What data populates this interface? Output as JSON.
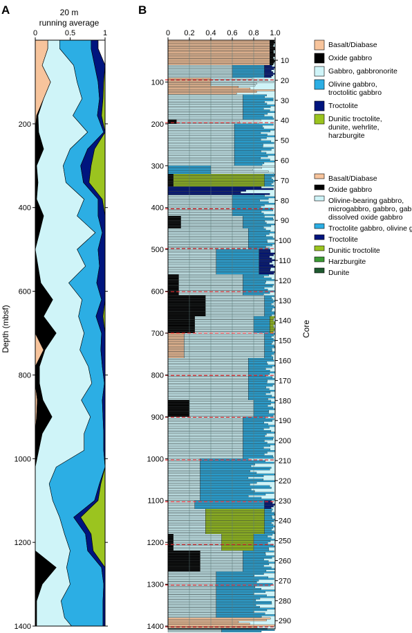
{
  "colors": {
    "basalt": "#f7c49c",
    "oxide": "#000000",
    "gabbro": "#cff4f8",
    "olivine_gabbro": "#2caee4",
    "troctolite": "#00157e",
    "dunitic_troctolite": "#9bc41f",
    "harzburgite": "#3d9c35",
    "dunite": "#1f5a30",
    "core_line": "#e2262a"
  },
  "chart_data": [
    {
      "type": "area",
      "panel_label": "A",
      "title": "20 m",
      "subtitle": "running average",
      "ylabel": "Depth (mbsf)",
      "xlim": [
        0,
        1
      ],
      "ylim": [
        0,
        1400
      ],
      "x_ticks": [
        "0",
        "0.5",
        "1"
      ],
      "y_ticks": [
        "200",
        "400",
        "600",
        "800",
        "1000",
        "1200",
        "1400"
      ],
      "series_order": [
        "Basalt/Diabase",
        "Oxide gabbro",
        "Gabbro, gabbronorite",
        "Olivine gabbro, troctolitic gabbro",
        "Troctolite",
        "Dunitic troctolite, dunite, wehrlite, harzburgite"
      ],
      "depth": [
        20,
        60,
        100,
        140,
        180,
        220,
        260,
        300,
        340,
        380,
        420,
        460,
        500,
        540,
        580,
        620,
        660,
        700,
        740,
        780,
        820,
        860,
        900,
        940,
        980,
        1020,
        1060,
        1100,
        1140,
        1180,
        1220,
        1260,
        1300,
        1340,
        1380,
        1400
      ],
      "series": [
        {
          "name": "Basalt/Diabase",
          "values": [
            0.18,
            0.1,
            0.22,
            0.12,
            0.02,
            0.0,
            0.0,
            0.0,
            0.0,
            0.0,
            0.0,
            0.0,
            0.0,
            0.0,
            0.0,
            0.0,
            0.0,
            0.0,
            0.12,
            0.0,
            0.0,
            0.03,
            0.02,
            0.0,
            0.0,
            0.0,
            0.0,
            0.0,
            0.0,
            0.0,
            0.0,
            0.0,
            0.0,
            0.0,
            0.0,
            0.0
          ]
        },
        {
          "name": "Oxide gabbro",
          "values": [
            0.0,
            0.0,
            0.0,
            0.0,
            0.02,
            0.05,
            0.12,
            0.02,
            0.04,
            0.02,
            0.12,
            0.06,
            0.0,
            0.04,
            0.08,
            0.25,
            0.12,
            0.3,
            0.02,
            0.06,
            0.06,
            0.08,
            0.22,
            0.1,
            0.05,
            0.0,
            0.0,
            0.0,
            0.0,
            0.0,
            0.0,
            0.3,
            0.1,
            0.02,
            0.02,
            0.02
          ]
        },
        {
          "name": "Gabbro, gabbronorite",
          "values": [
            0.17,
            0.45,
            0.38,
            0.55,
            0.5,
            0.7,
            0.38,
            0.38,
            0.4,
            0.68,
            0.48,
            0.8,
            0.6,
            0.68,
            0.4,
            0.42,
            0.5,
            0.4,
            0.5,
            0.7,
            0.75,
            0.55,
            0.55,
            0.6,
            0.65,
            0.3,
            0.2,
            0.25,
            0.35,
            0.42,
            0.5,
            0.15,
            0.4,
            0.35,
            0.4,
            0.5
          ]
        },
        {
          "name": "Olivine gabbro, troctolitic gabbro",
          "values": [
            0.45,
            0.3,
            0.3,
            0.25,
            0.35,
            0.23,
            0.25,
            0.25,
            0.25,
            0.2,
            0.3,
            0.1,
            0.3,
            0.2,
            0.4,
            0.28,
            0.25,
            0.25,
            0.3,
            0.2,
            0.18,
            0.3,
            0.18,
            0.28,
            0.28,
            0.7,
            0.72,
            0.6,
            0.2,
            0.3,
            0.25,
            0.5,
            0.48,
            0.6,
            0.55,
            0.45
          ]
        },
        {
          "name": "Troctolite",
          "values": [
            0.1,
            0.15,
            0.08,
            0.05,
            0.06,
            0.02,
            0.1,
            0.15,
            0.08,
            0.06,
            0.1,
            0.04,
            0.1,
            0.08,
            0.12,
            0.05,
            0.1,
            0.05,
            0.06,
            0.04,
            0.01,
            0.04,
            0.03,
            0.02,
            0.02,
            0.0,
            0.02,
            0.05,
            0.1,
            0.08,
            0.08,
            0.05,
            0.02,
            0.03,
            0.03,
            0.03
          ]
        },
        {
          "name": "Dunitic troctolite, dunite, wehrlite, harzburgite",
          "values": [
            0.0,
            0.0,
            0.02,
            0.03,
            0.05,
            0.0,
            0.15,
            0.2,
            0.23,
            0.04,
            0.0,
            0.0,
            0.0,
            0.0,
            0.0,
            0.0,
            0.03,
            0.0,
            0.0,
            0.0,
            0.0,
            0.0,
            0.0,
            0.0,
            0.0,
            0.0,
            0.06,
            0.1,
            0.35,
            0.2,
            0.17,
            0.0,
            0.0,
            0.0,
            0.0,
            0.0
          ]
        }
      ]
    },
    {
      "type": "bar",
      "panel_label": "B",
      "ylabel": "Core",
      "xlim": [
        0,
        1
      ],
      "ylim": [
        0,
        1400
      ],
      "x_ticks": [
        "0",
        "0.2",
        "0.4",
        "0.6",
        "0.8",
        "1.0"
      ],
      "y_ticks": [
        "100",
        "200",
        "300",
        "400",
        "500",
        "600",
        "700",
        "800",
        "900",
        "1000",
        "1100",
        "1200",
        "1300",
        "1400"
      ],
      "core_ticks": [
        "10",
        "20",
        "30",
        "40",
        "50",
        "60",
        "70",
        "80",
        "90",
        "100",
        "110",
        "120",
        "130",
        "140",
        "150",
        "160",
        "170",
        "180",
        "190",
        "200",
        "210",
        "220",
        "230",
        "240",
        "250",
        "260",
        "270",
        "280",
        "290"
      ],
      "core_boundaries_mbsf": [
        95,
        197,
        403,
        498,
        601,
        700,
        801,
        901,
        1003,
        1103,
        1205,
        1302,
        1402
      ],
      "intervals": [
        {
          "top": 0,
          "bottom": 60,
          "units": [
            [
              "basalt",
              0.95
            ],
            [
              "oxide",
              0.05
            ]
          ]
        },
        {
          "top": 60,
          "bottom": 90,
          "units": [
            [
              "gabbro",
              0.6
            ],
            [
              "olivine_gabbro",
              0.3
            ],
            [
              "troctolite",
              0.1
            ]
          ]
        },
        {
          "top": 90,
          "bottom": 110,
          "units": [
            [
              "basalt",
              0.4
            ],
            [
              "gabbro",
              0.6
            ]
          ]
        },
        {
          "top": 110,
          "bottom": 130,
          "units": [
            [
              "basalt",
              1.0
            ]
          ]
        },
        {
          "top": 130,
          "bottom": 190,
          "units": [
            [
              "gabbro",
              0.7
            ],
            [
              "olivine_gabbro",
              0.3
            ]
          ]
        },
        {
          "top": 190,
          "bottom": 200,
          "units": [
            [
              "oxide",
              0.08
            ],
            [
              "gabbro",
              0.92
            ]
          ]
        },
        {
          "top": 200,
          "bottom": 300,
          "units": [
            [
              "gabbro",
              0.62
            ],
            [
              "olivine_gabbro",
              0.38
            ]
          ]
        },
        {
          "top": 300,
          "bottom": 320,
          "units": [
            [
              "olivine_gabbro",
              0.4
            ],
            [
              "gabbro",
              0.6
            ]
          ]
        },
        {
          "top": 320,
          "bottom": 350,
          "units": [
            [
              "oxide",
              0.05
            ],
            [
              "dunitic_troctolite",
              0.85
            ],
            [
              "olivine_gabbro",
              0.1
            ]
          ]
        },
        {
          "top": 350,
          "bottom": 370,
          "units": [
            [
              "troctolite",
              1.0
            ]
          ]
        },
        {
          "top": 370,
          "bottom": 420,
          "units": [
            [
              "gabbro",
              0.6
            ],
            [
              "olivine_gabbro",
              0.4
            ]
          ]
        },
        {
          "top": 420,
          "bottom": 450,
          "units": [
            [
              "oxide",
              0.12
            ],
            [
              "gabbro",
              0.58
            ],
            [
              "olivine_gabbro",
              0.3
            ]
          ]
        },
        {
          "top": 450,
          "bottom": 500,
          "units": [
            [
              "gabbro",
              0.75
            ],
            [
              "olivine_gabbro",
              0.25
            ]
          ]
        },
        {
          "top": 500,
          "bottom": 560,
          "units": [
            [
              "gabbro",
              0.45
            ],
            [
              "olivine_gabbro",
              0.4
            ],
            [
              "troctolite",
              0.15
            ]
          ]
        },
        {
          "top": 560,
          "bottom": 610,
          "units": [
            [
              "oxide",
              0.1
            ],
            [
              "gabbro",
              0.6
            ],
            [
              "olivine_gabbro",
              0.3
            ]
          ]
        },
        {
          "top": 610,
          "bottom": 660,
          "units": [
            [
              "oxide",
              0.35
            ],
            [
              "gabbro",
              0.55
            ],
            [
              "olivine_gabbro",
              0.1
            ]
          ]
        },
        {
          "top": 660,
          "bottom": 700,
          "units": [
            [
              "oxide",
              0.25
            ],
            [
              "gabbro",
              0.55
            ],
            [
              "olivine_gabbro",
              0.15
            ],
            [
              "dunitic_troctolite",
              0.05
            ]
          ]
        },
        {
          "top": 700,
          "bottom": 760,
          "units": [
            [
              "basalt",
              0.15
            ],
            [
              "gabbro",
              0.75
            ],
            [
              "olivine_gabbro",
              0.1
            ]
          ]
        },
        {
          "top": 760,
          "bottom": 860,
          "units": [
            [
              "gabbro",
              0.75
            ],
            [
              "olivine_gabbro",
              0.25
            ]
          ]
        },
        {
          "top": 860,
          "bottom": 900,
          "units": [
            [
              "oxide",
              0.2
            ],
            [
              "gabbro",
              0.6
            ],
            [
              "olivine_gabbro",
              0.2
            ]
          ]
        },
        {
          "top": 900,
          "bottom": 1000,
          "units": [
            [
              "gabbro",
              0.7
            ],
            [
              "olivine_gabbro",
              0.3
            ]
          ]
        },
        {
          "top": 1000,
          "bottom": 1100,
          "units": [
            [
              "gabbro",
              0.3
            ],
            [
              "olivine_gabbro",
              0.7
            ]
          ]
        },
        {
          "top": 1100,
          "bottom": 1120,
          "units": [
            [
              "gabbro",
              0.25
            ],
            [
              "olivine_gabbro",
              0.65
            ],
            [
              "troctolite",
              0.1
            ]
          ]
        },
        {
          "top": 1120,
          "bottom": 1180,
          "units": [
            [
              "gabbro",
              0.35
            ],
            [
              "dunitic_troctolite",
              0.55
            ],
            [
              "olivine_gabbro",
              0.1
            ]
          ]
        },
        {
          "top": 1180,
          "bottom": 1220,
          "units": [
            [
              "oxide",
              0.05
            ],
            [
              "gabbro",
              0.45
            ],
            [
              "dunitic_troctolite",
              0.3
            ],
            [
              "olivine_gabbro",
              0.2
            ]
          ]
        },
        {
          "top": 1220,
          "bottom": 1270,
          "units": [
            [
              "oxide",
              0.3
            ],
            [
              "gabbro",
              0.4
            ],
            [
              "olivine_gabbro",
              0.3
            ]
          ]
        },
        {
          "top": 1270,
          "bottom": 1380,
          "units": [
            [
              "gabbro",
              0.45
            ],
            [
              "olivine_gabbro",
              0.55
            ]
          ]
        },
        {
          "top": 1380,
          "bottom": 1405,
          "units": [
            [
              "basalt",
              1.0
            ]
          ]
        },
        {
          "top": 1405,
          "bottom": 1415,
          "units": [
            [
              "gabbro",
              0.5
            ],
            [
              "olivine_gabbro",
              0.5
            ]
          ]
        }
      ]
    }
  ],
  "legend_a": [
    {
      "label": "Basalt/Diabase",
      "color_key": "basalt"
    },
    {
      "label": "Oxide gabbro",
      "color_key": "oxide"
    },
    {
      "label": "Gabbro, gabbronorite",
      "color_key": "gabbro"
    },
    {
      "label": "Olivine gabbro, troctolitic gabbro",
      "color_key": "olivine_gabbro"
    },
    {
      "label": "Troctolite",
      "color_key": "troctolite"
    },
    {
      "label": "Dunitic troctolite, dunite, wehrlite, harzburgite",
      "color_key": "dunitic_troctolite"
    }
  ],
  "legend_b": [
    {
      "label": "Basalt/Diabase",
      "color_key": "basalt"
    },
    {
      "label": "Oxide gabbro",
      "color_key": "oxide"
    },
    {
      "label": "Olivine-bearing gabbro, microgabbro, gabbro, gabbronorite, dissolved oxide gabbro",
      "color_key": "gabbro"
    },
    {
      "label": "Troctolite gabbro, olivine gabbro",
      "color_key": "olivine_gabbro"
    },
    {
      "label": "Troctolite",
      "color_key": "troctolite"
    },
    {
      "label": "Dunitic troctolite",
      "color_key": "dunitic_troctolite"
    },
    {
      "label": "Harzburgite",
      "color_key": "harzburgite"
    },
    {
      "label": "Dunite",
      "color_key": "dunite"
    }
  ]
}
